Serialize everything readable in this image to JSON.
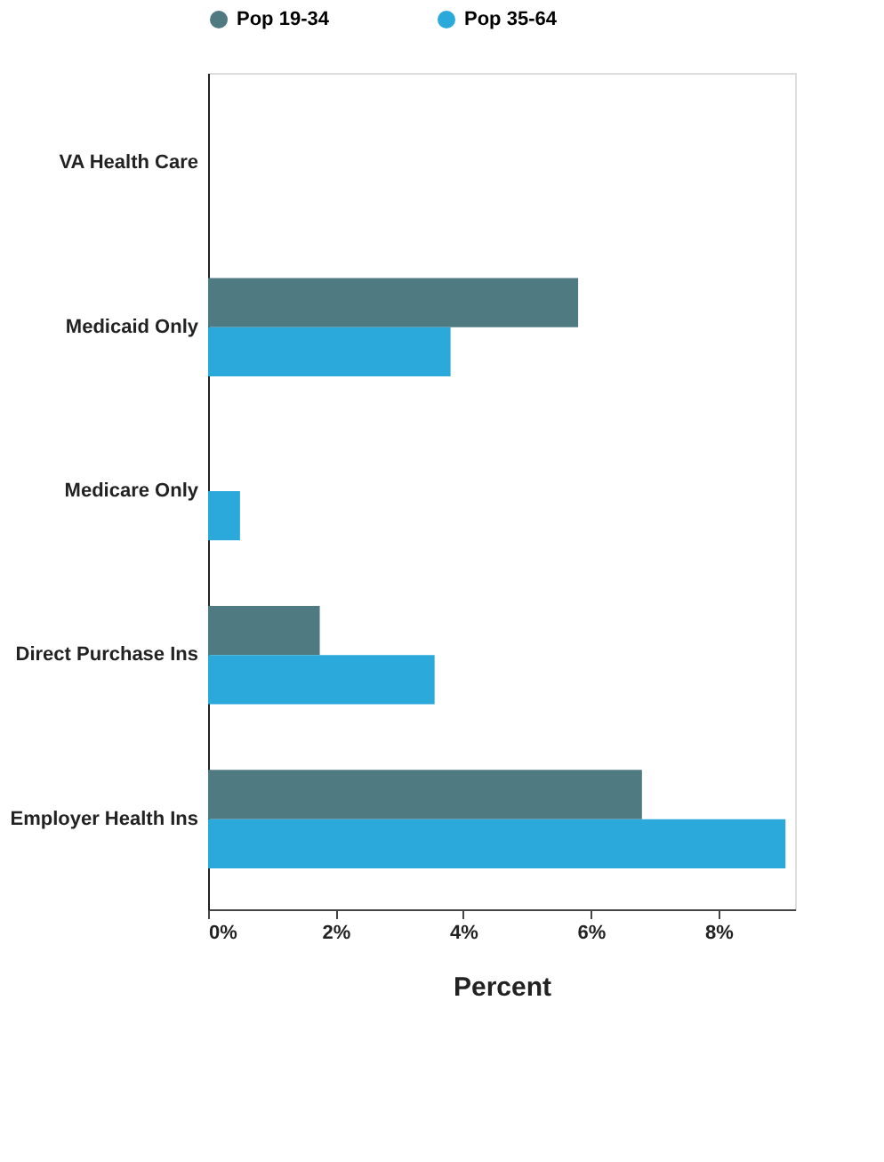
{
  "chart_data": {
    "type": "bar",
    "orientation": "horizontal",
    "xlabel": "Percent",
    "categories": [
      "VA Health Care",
      "Medicaid Only",
      "Medicare Only",
      "Direct Purchase Ins",
      "Employer Health Ins"
    ],
    "series": [
      {
        "name": "Pop 19-34",
        "color": "#4f7a82",
        "values": [
          0,
          5.8,
          0,
          1.75,
          6.8
        ]
      },
      {
        "name": "Pop 35-64",
        "color": "#2aa9da",
        "values": [
          0,
          3.8,
          0.5,
          3.55,
          9.05
        ]
      }
    ],
    "xlim": [
      0,
      9.2
    ],
    "xticks": [
      {
        "value": 0,
        "label": "0%"
      },
      {
        "value": 2,
        "label": "2%"
      },
      {
        "value": 4,
        "label": "4%"
      },
      {
        "value": 6,
        "label": "6%"
      },
      {
        "value": 8,
        "label": "8%"
      }
    ],
    "legend": "top",
    "grid": false
  }
}
